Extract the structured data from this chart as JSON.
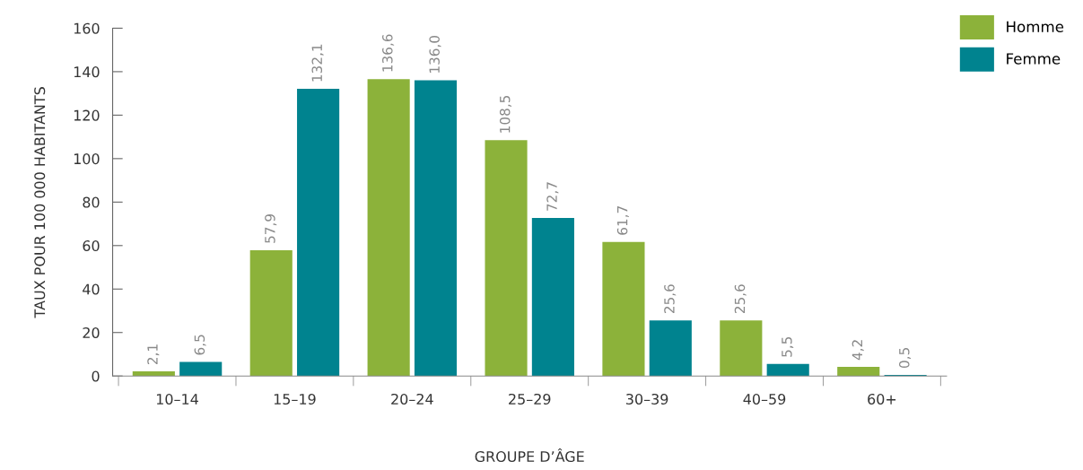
{
  "chart_data": {
    "type": "bar",
    "xlabel": "GROUPE D’ÂGE",
    "ylabel": "TAUX POUR 100 000 HABITANTS",
    "categories": [
      "10–14",
      "15–19",
      "20–24",
      "25–29",
      "30–39",
      "40–59",
      "60+"
    ],
    "series": [
      {
        "name": "Homme",
        "color": "#8cb23a",
        "values": [
          2.1,
          57.9,
          136.6,
          108.5,
          61.7,
          25.6,
          4.2
        ],
        "value_labels": [
          "2,1",
          "57,9",
          "136,6",
          "108,5",
          "61,7",
          "25,6",
          "4,2"
        ]
      },
      {
        "name": "Femme",
        "color": "#00838f",
        "values": [
          6.5,
          132.1,
          136.0,
          72.7,
          25.6,
          5.5,
          0.5
        ],
        "value_labels": [
          "6,5",
          "132,1",
          "136,0",
          "72,7",
          "25,6",
          "5,5",
          "0,5"
        ]
      }
    ],
    "ylim": [
      0,
      160
    ],
    "yticks": [
      0,
      20,
      40,
      60,
      80,
      100,
      120,
      140,
      160
    ],
    "grid": false,
    "legend": "top right"
  }
}
